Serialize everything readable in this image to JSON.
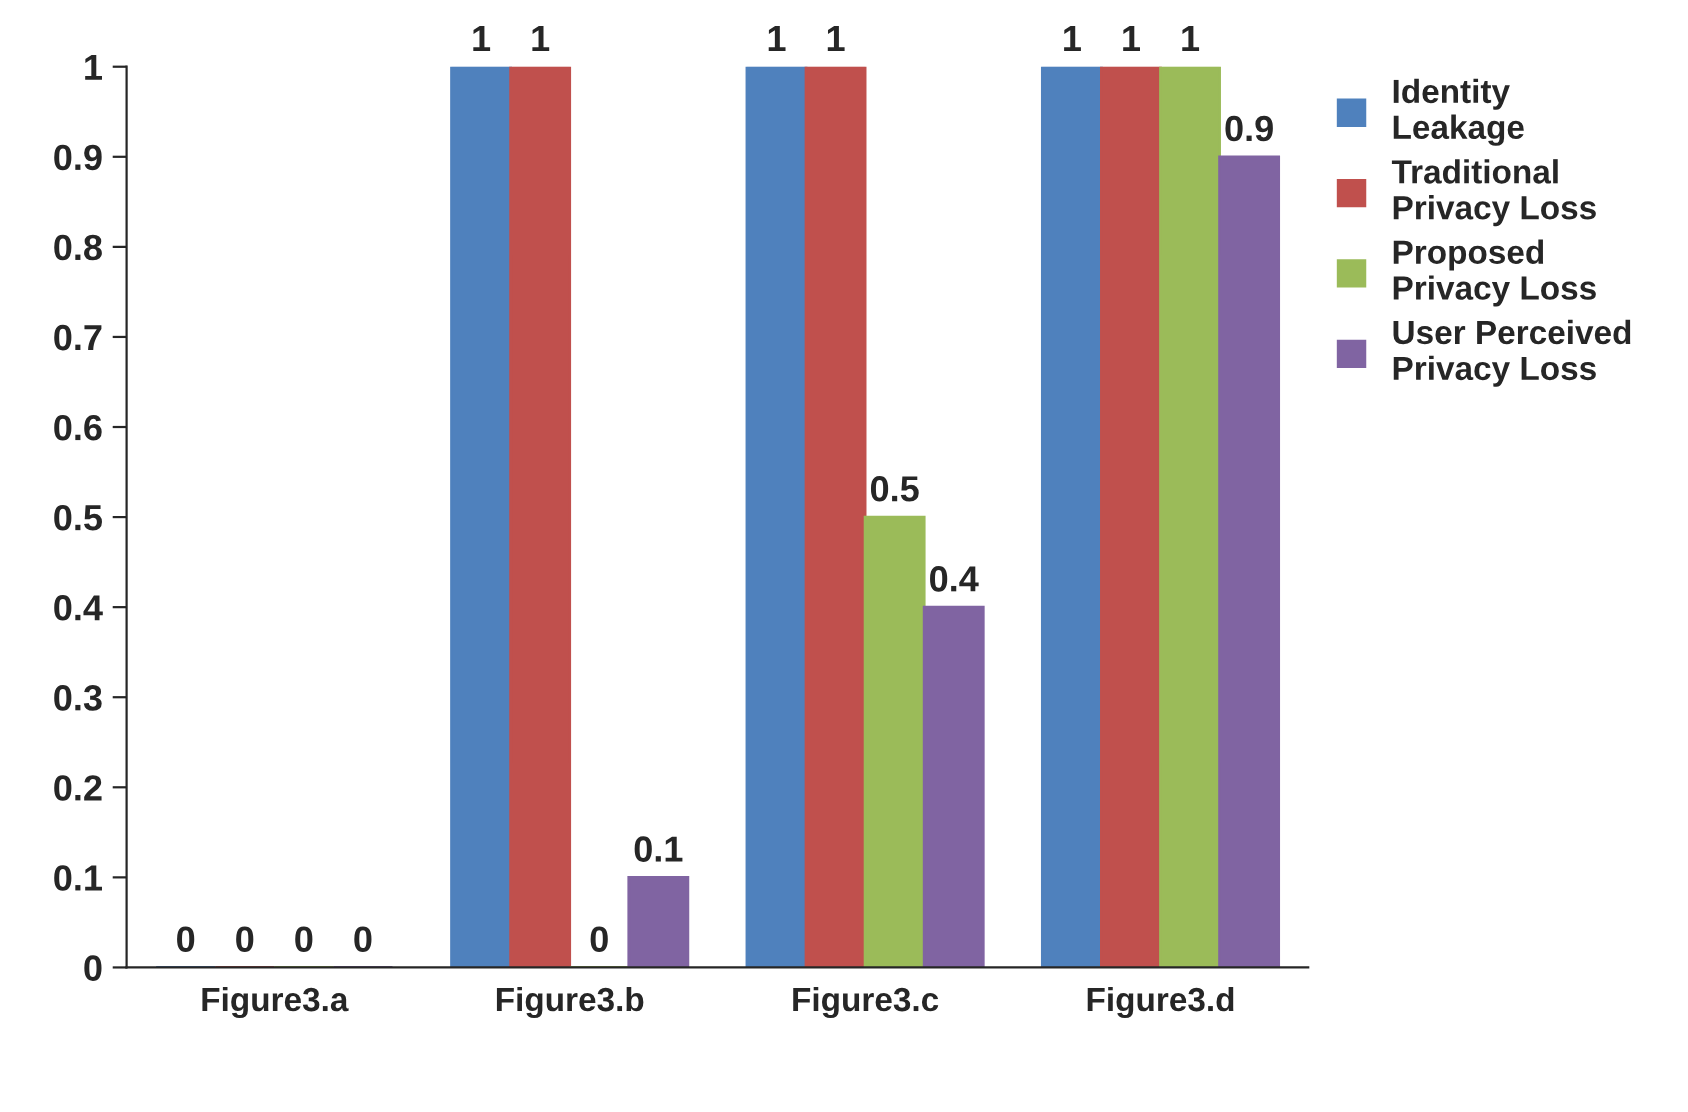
{
  "chart_data": {
    "type": "bar",
    "categories": [
      "Figure3.a",
      "Figure3.b",
      "Figure3.c",
      "Figure3.d"
    ],
    "series": [
      {
        "name": "Identity Leakage",
        "color": "#4f81bd",
        "values": [
          0,
          1,
          1,
          1
        ]
      },
      {
        "name": "Traditional Privacy Loss",
        "color": "#c0504d",
        "values": [
          0,
          1,
          1,
          1
        ]
      },
      {
        "name": "Proposed Privacy Loss",
        "color": "#9bbb59",
        "values": [
          0,
          0,
          0.5,
          1
        ]
      },
      {
        "name": "User Perceived Privacy Loss",
        "color": "#8064a2",
        "values": [
          0,
          0.1,
          0.4,
          0.9
        ]
      }
    ],
    "ylim": [
      0,
      1
    ],
    "yticks": [
      0,
      0.1,
      0.2,
      0.3,
      0.4,
      0.5,
      0.6,
      0.7,
      0.8,
      0.9,
      1
    ],
    "data_labels": true,
    "legend": "right",
    "grid": false
  }
}
